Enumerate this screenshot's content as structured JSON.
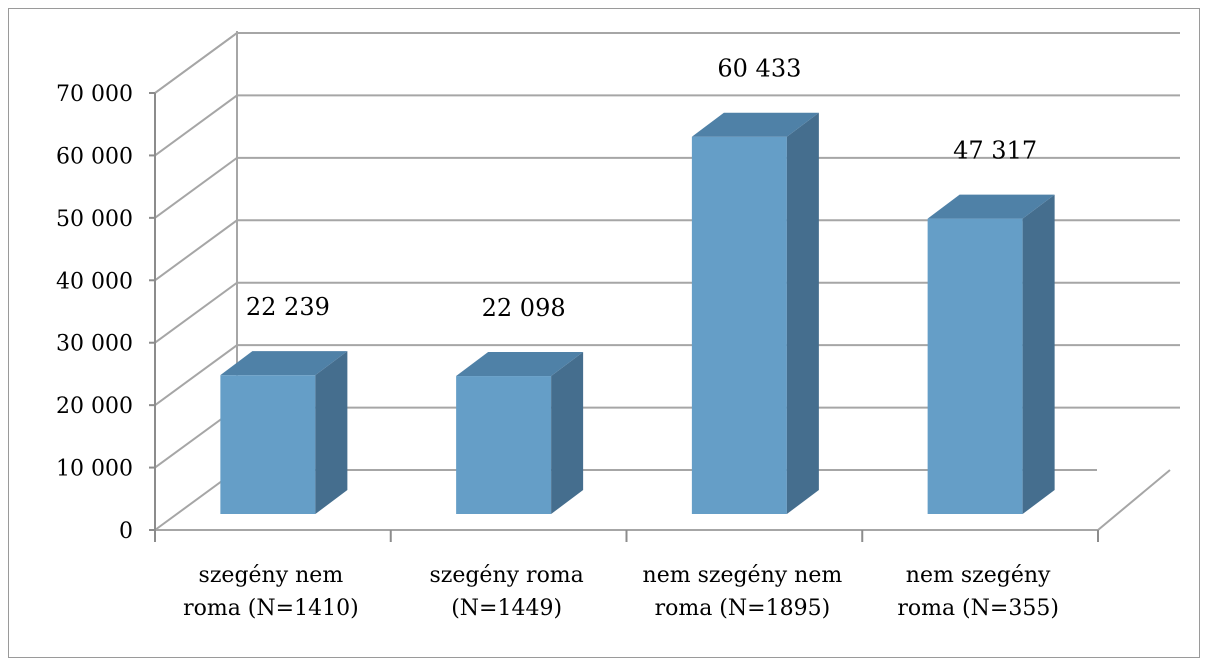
{
  "chart_data": {
    "type": "bar",
    "style": "3d-column",
    "categories": [
      [
        "szegény nem",
        "roma (N=1410)"
      ],
      [
        "szegény roma",
        "(N=1449)"
      ],
      [
        "nem szegény nem",
        "roma (N=1895)"
      ],
      [
        "nem szegény",
        "roma (N=355)"
      ]
    ],
    "values": [
      22239,
      22098,
      60433,
      47317
    ],
    "data_labels": [
      "22 239",
      "22 098",
      "60 433",
      "47 317"
    ],
    "ylim": [
      0,
      70000
    ],
    "ytick_values": [
      0,
      10000,
      20000,
      30000,
      40000,
      50000,
      60000,
      70000
    ],
    "ytick_labels": [
      "0",
      "10 000",
      "20 000",
      "30 000",
      "40 000",
      "50 000",
      "60 000",
      "70 000"
    ],
    "grid": true,
    "legend": "none",
    "colors": {
      "bar_front": "#659ec7",
      "bar_side": "#456e8e",
      "bar_top": "#4f81a7",
      "grid": "#a6a6a6",
      "axis": "#8c8c8c"
    }
  }
}
